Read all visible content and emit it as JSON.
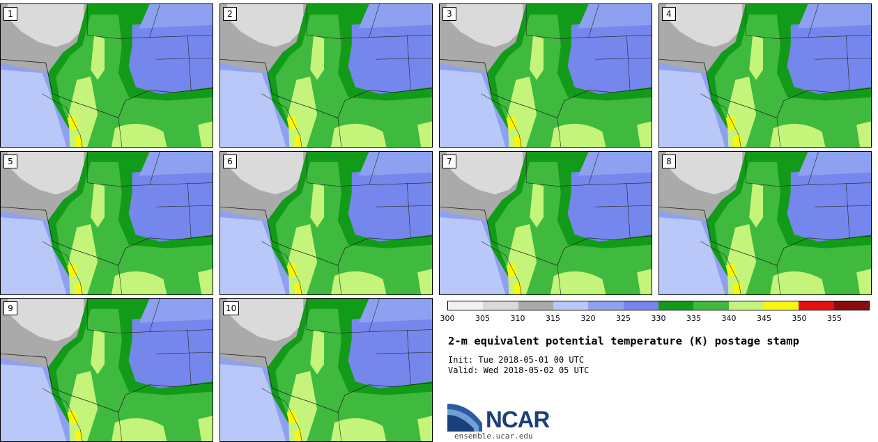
{
  "panels": [
    {
      "label": "1"
    },
    {
      "label": "2"
    },
    {
      "label": "3"
    },
    {
      "label": "4"
    },
    {
      "label": "5"
    },
    {
      "label": "6"
    },
    {
      "label": "7"
    },
    {
      "label": "8"
    },
    {
      "label": "9"
    },
    {
      "label": "10"
    }
  ],
  "legend": {
    "ticks": [
      "300",
      "305",
      "310",
      "315",
      "320",
      "325",
      "330",
      "335",
      "340",
      "345",
      "350",
      "355"
    ],
    "colors": [
      "#f1f1f1",
      "#dadada",
      "#aaaaaa",
      "#b9c8f8",
      "#8ea1f1",
      "#7587ec",
      "#129b18",
      "#3fba3f",
      "#c4f57a",
      "#f8f80a",
      "#e60e0e",
      "#8b0c0c"
    ]
  },
  "map_colors": {
    "grey_light": "#dadada",
    "grey_dark": "#aaaaaa",
    "blue_light": "#b9c8f8",
    "blue_mid": "#8ea1f1",
    "blue_dark": "#7587ec",
    "green_dark": "#129b18",
    "green_mid": "#3fba3f",
    "green_light": "#c4f57a",
    "yellow": "#f8f80a"
  },
  "title": "2-m equivalent potential temperature (K) postage stamp",
  "init": "Init: Tue 2018-05-01 00 UTC",
  "valid": "Valid: Wed 2018-05-02 05 UTC",
  "logo": {
    "text": "NCAR"
  },
  "url": "ensemble.ucar.edu"
}
